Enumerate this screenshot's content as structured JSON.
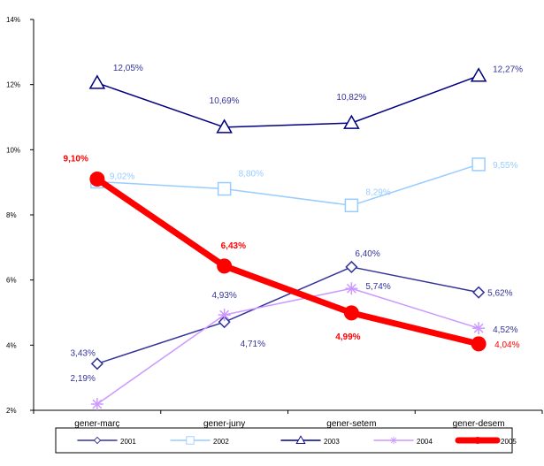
{
  "chart_data": {
    "type": "line",
    "categories": [
      "gener-març",
      "gener-juny",
      "gener-setem",
      "gener-desem"
    ],
    "ylim": [
      2,
      14
    ],
    "yticks": [
      {
        "value": 2,
        "label": "2%"
      },
      {
        "value": 4,
        "label": "4%"
      },
      {
        "value": 6,
        "label": "6%"
      },
      {
        "value": 8,
        "label": "8%"
      },
      {
        "value": 10,
        "label": "10%"
      },
      {
        "value": 12,
        "label": "12%"
      },
      {
        "value": 14,
        "label": "14%"
      }
    ],
    "grid": false,
    "legend": "bottom",
    "series": [
      {
        "name": "2001",
        "values": [
          3.43,
          4.71,
          6.4,
          5.62
        ],
        "labels": [
          "3,43%",
          "4,71%",
          "6,40%",
          "5,62%"
        ],
        "color": "#333399",
        "marker": "diamond"
      },
      {
        "name": "2002",
        "values": [
          9.02,
          8.8,
          8.29,
          9.55
        ],
        "labels": [
          "9,02%",
          "8,80%",
          "8,29%",
          "9,55%"
        ],
        "color": "#99ccff",
        "marker": "square"
      },
      {
        "name": "2003",
        "values": [
          12.05,
          10.69,
          10.82,
          12.27
        ],
        "labels": [
          "12,05%",
          "10,69%",
          "10,82%",
          "12,27%"
        ],
        "color": "#000080",
        "marker": "triangle"
      },
      {
        "name": "2004",
        "values": [
          2.19,
          4.93,
          5.74,
          4.52
        ],
        "labels": [
          "2,19%",
          "4,93%",
          "5,74%",
          "4,52%"
        ],
        "color": "#cc99ff",
        "marker": "star"
      },
      {
        "name": "2005",
        "values": [
          9.1,
          6.43,
          4.99,
          4.04
        ],
        "labels": [
          "9,10%",
          "6,43%",
          "4,99%",
          "4,04%"
        ],
        "color": "#ff0000",
        "marker": "circle"
      }
    ]
  }
}
